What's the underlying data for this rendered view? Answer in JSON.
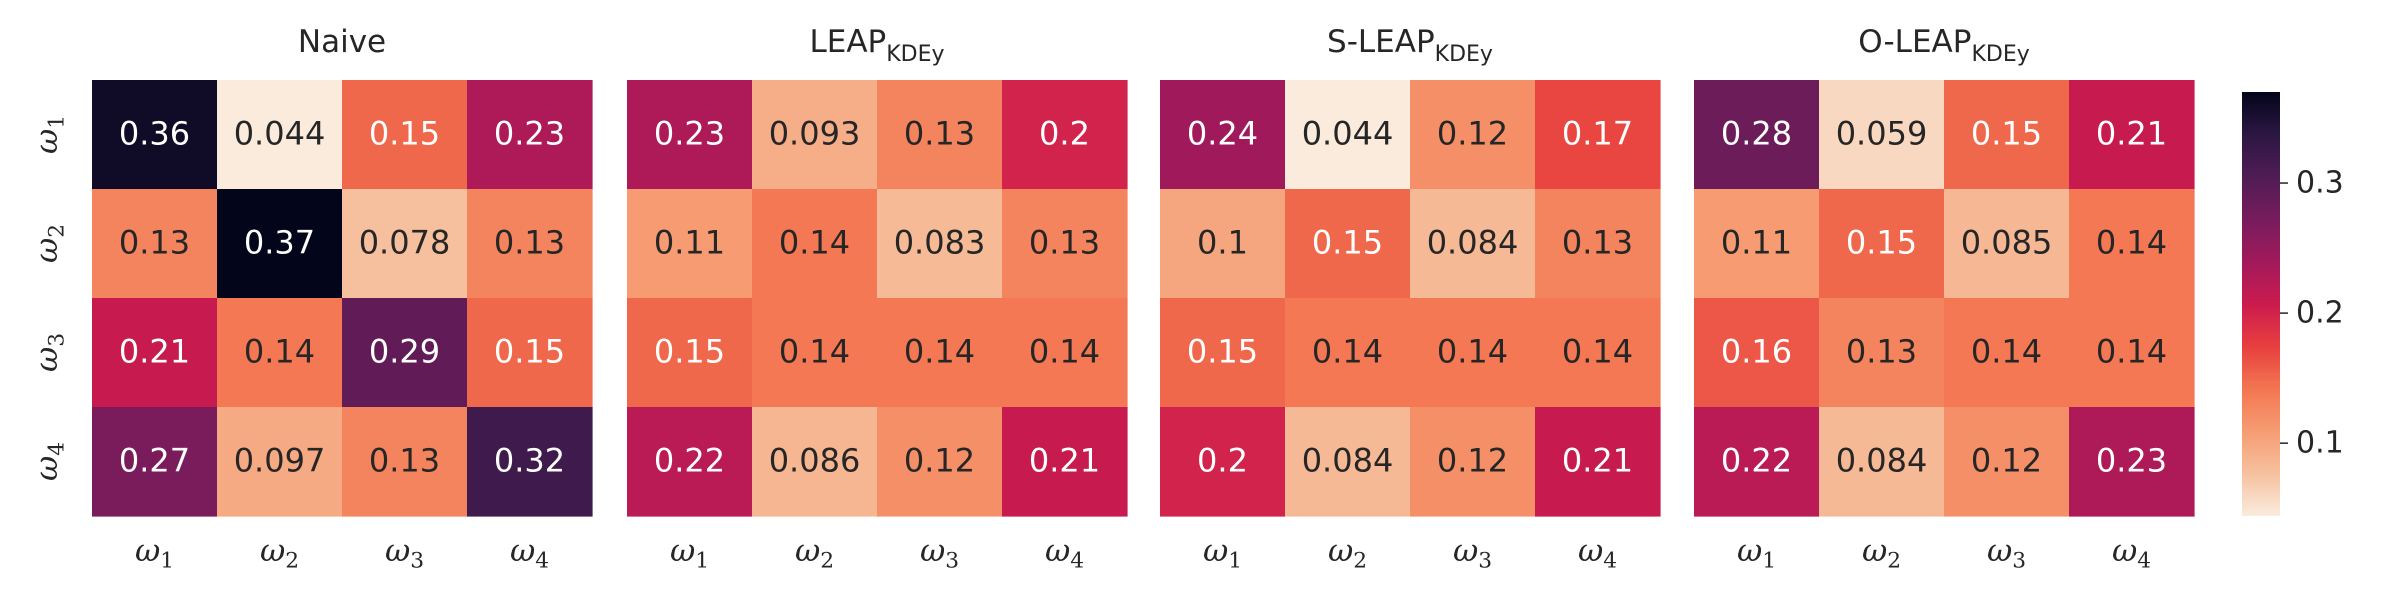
{
  "chart_data": {
    "type": "heatmap",
    "colorbar": {
      "min": 0.044,
      "max": 0.37,
      "ticks": [
        "0.1",
        "0.2",
        "0.3"
      ],
      "tick_values": [
        0.1,
        0.2,
        0.3
      ],
      "colormap": "rocket_r"
    },
    "row_labels": [
      "ω1",
      "ω2",
      "ω3",
      "ω4"
    ],
    "col_labels": [
      "ω1",
      "ω2",
      "ω3",
      "ω4"
    ],
    "panels": [
      {
        "title": "Naive",
        "title_main": "Naive",
        "title_sub": "",
        "values": [
          [
            0.36,
            0.044,
            0.15,
            0.23
          ],
          [
            0.13,
            0.37,
            0.078,
            0.13
          ],
          [
            0.21,
            0.14,
            0.29,
            0.15
          ],
          [
            0.27,
            0.097,
            0.13,
            0.32
          ]
        ]
      },
      {
        "title": "LEAPKDEy",
        "title_main": "LEAP",
        "title_sub": "KDEy",
        "values": [
          [
            0.23,
            0.093,
            0.13,
            0.2
          ],
          [
            0.11,
            0.14,
            0.083,
            0.13
          ],
          [
            0.15,
            0.14,
            0.14,
            0.14
          ],
          [
            0.22,
            0.086,
            0.12,
            0.21
          ]
        ]
      },
      {
        "title": "S-LEAPKDEy",
        "title_main": "S-LEAP",
        "title_sub": "KDEy",
        "values": [
          [
            0.24,
            0.044,
            0.12,
            0.17
          ],
          [
            0.1,
            0.15,
            0.084,
            0.13
          ],
          [
            0.15,
            0.14,
            0.14,
            0.14
          ],
          [
            0.2,
            0.084,
            0.12,
            0.21
          ]
        ]
      },
      {
        "title": "O-LEAPKDEy",
        "title_main": "O-LEAP",
        "title_sub": "KDEy",
        "values": [
          [
            0.28,
            0.059,
            0.15,
            0.21
          ],
          [
            0.11,
            0.15,
            0.085,
            0.14
          ],
          [
            0.16,
            0.13,
            0.14,
            0.14
          ],
          [
            0.22,
            0.084,
            0.12,
            0.23
          ]
        ]
      }
    ]
  }
}
